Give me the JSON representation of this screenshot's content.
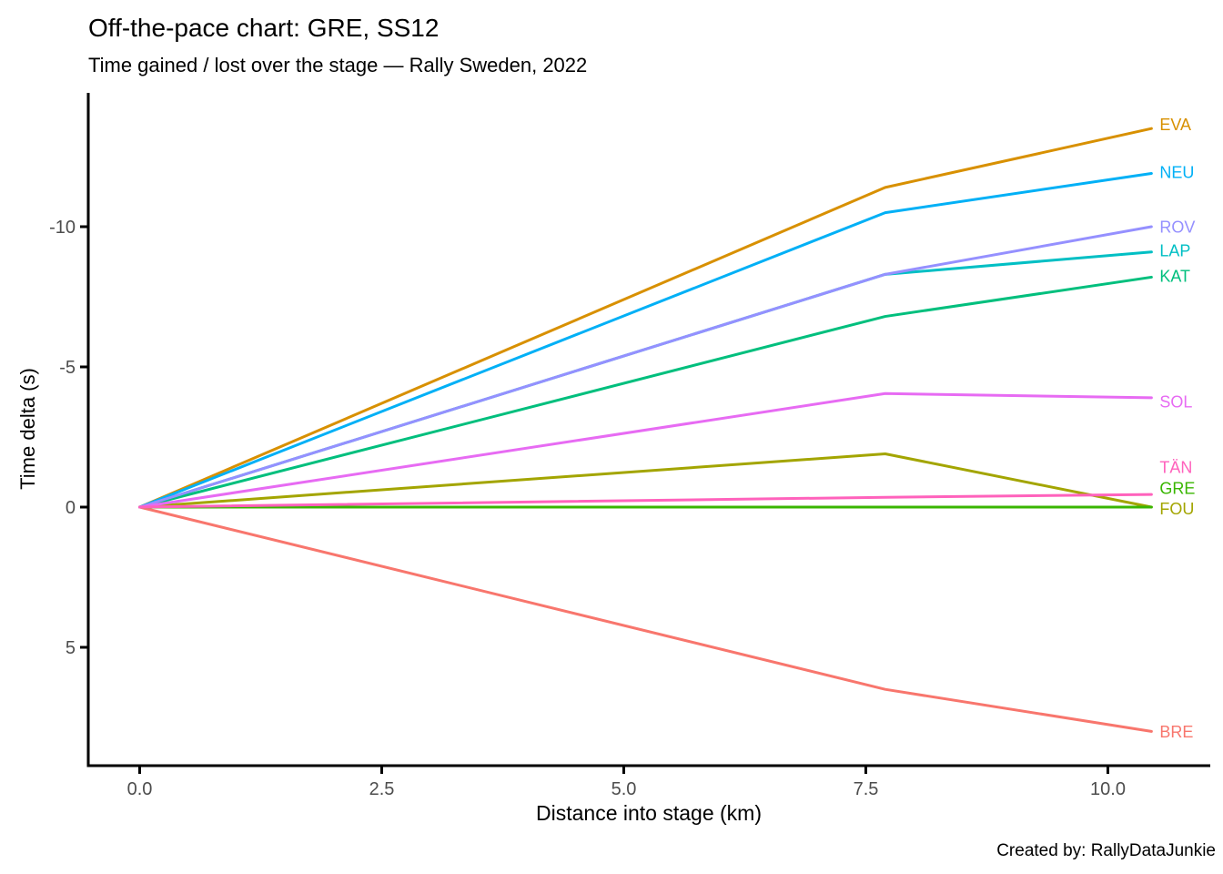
{
  "header": {
    "title": "Off-the-pace chart: GRE, SS12",
    "subtitle": "Time gained / lost over the stage — Rally Sweden, 2022"
  },
  "footer": {
    "caption": "Created by: RallyDataJunkie"
  },
  "chart_data": {
    "type": "line",
    "title": "Off-the-pace chart: GRE, SS12",
    "subtitle": "Time gained / lost over the stage — Rally Sweden, 2022",
    "xlabel": "Distance into stage (km)",
    "ylabel": "Time delta (s)",
    "x_ticks": [
      0.0,
      2.5,
      5.0,
      7.5,
      10.0
    ],
    "x_tick_labels": [
      "0.0",
      "2.5",
      "5.0",
      "7.5",
      "10.0"
    ],
    "y_ticks": [
      -10,
      -5,
      0,
      5
    ],
    "y_tick_labels": [
      "-10",
      "-5",
      "0",
      "5"
    ],
    "y_axis_reversed": true,
    "x_range": [
      -0.53,
      11.05
    ],
    "y_range": [
      -14.8,
      9.2
    ],
    "grid": false,
    "legend_position": "right-of-line-labels",
    "tick_label_color": "#4d4d4d",
    "axis_line_color": "#000000",
    "x": [
      0.0,
      7.7,
      10.45
    ],
    "series": [
      {
        "name": "BRE",
        "color": "#F8766D",
        "values": [
          0.0,
          6.5,
          8.0
        ],
        "label_at": 8.0
      },
      {
        "name": "EVA",
        "color": "#D89000",
        "values": [
          0.0,
          -11.4,
          -13.5
        ],
        "label_at": -13.65
      },
      {
        "name": "FOU",
        "color": "#A3A500",
        "values": [
          0.0,
          -1.9,
          0.0
        ],
        "label_at": 0.05
      },
      {
        "name": "GRE",
        "color": "#39B600",
        "values": [
          0.0,
          0.0,
          0.0
        ],
        "label_at": -0.68
      },
      {
        "name": "KAT",
        "color": "#00BF7D",
        "values": [
          0.0,
          -6.8,
          -8.2
        ],
        "label_at": -8.25
      },
      {
        "name": "LAP",
        "color": "#00BFC4",
        "values": [
          0.0,
          -8.3,
          -9.1
        ],
        "label_at": -9.15
      },
      {
        "name": "NEU",
        "color": "#00B0F6",
        "values": [
          0.0,
          -10.5,
          -11.9
        ],
        "label_at": -11.95
      },
      {
        "name": "ROV",
        "color": "#9590FF",
        "values": [
          0.0,
          -8.3,
          -10.0
        ],
        "label_at": -10.0
      },
      {
        "name": "SOL",
        "color": "#E76BF3",
        "values": [
          0.0,
          -4.05,
          -3.9
        ],
        "label_at": -3.77
      },
      {
        "name": "TÄN",
        "color": "#FF62BC",
        "values": [
          0.0,
          -0.35,
          -0.45
        ],
        "label_at": -1.43
      }
    ]
  }
}
